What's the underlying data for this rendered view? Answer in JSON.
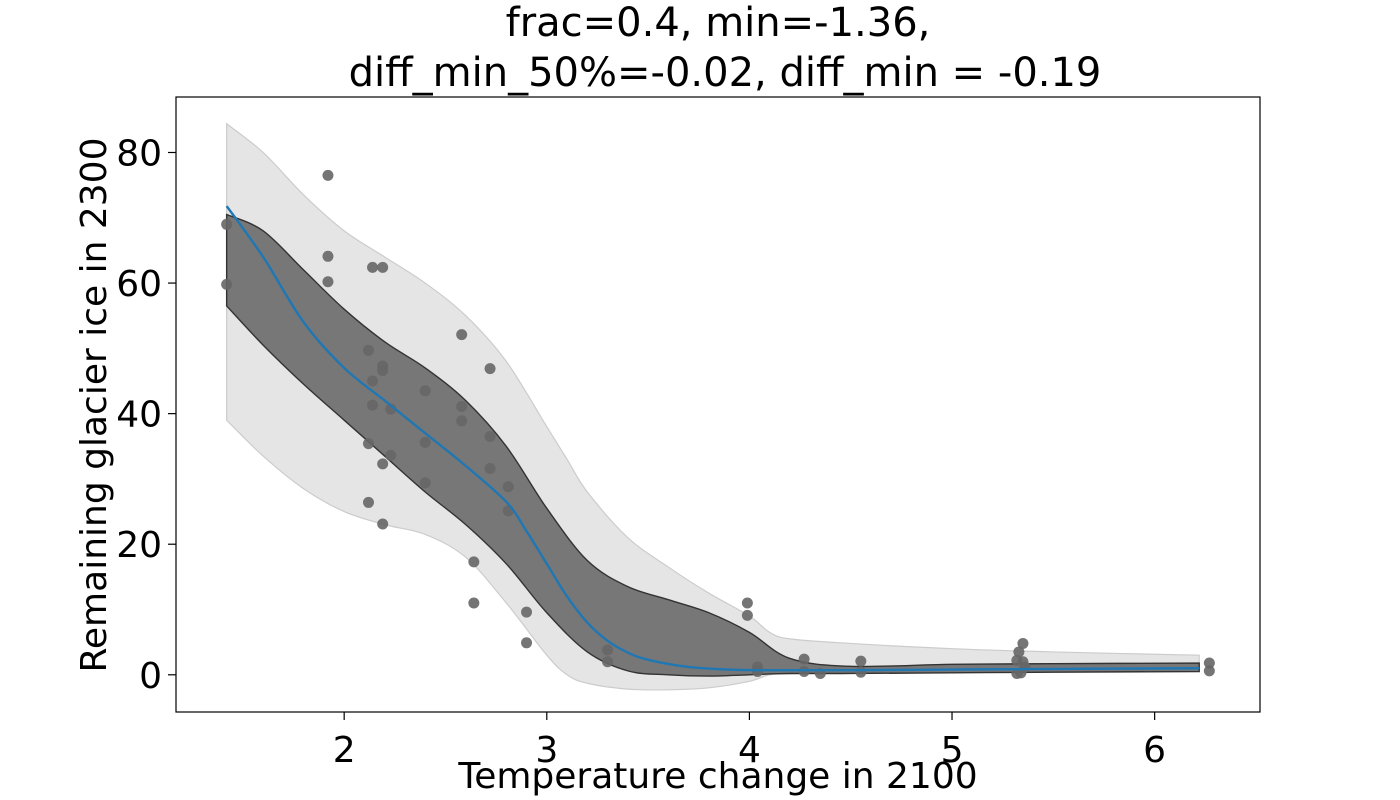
{
  "chart_data": {
    "type": "scatter",
    "title_lines": [
      "frac=0.4, min=-1.36,",
      "diff_min_50%=-0.02, diff_min = -0.19"
    ],
    "xlabel": "Temperature change in 2100",
    "ylabel": "Remaining glacier ice in 2300",
    "xlim": [
      1.17,
      6.52
    ],
    "ylim": [
      -5.7,
      88.5
    ],
    "xticks": [
      2,
      3,
      4,
      5,
      6
    ],
    "yticks": [
      0,
      20,
      40,
      60,
      80
    ],
    "grid": false,
    "colors": {
      "points": "#666666",
      "line": "#1f77b4",
      "outer_band": "#e5e5e5",
      "outer_band_edge": "#cccccc",
      "inner_band": "#777777",
      "inner_band_edge": "#333333"
    },
    "points": {
      "x": [
        1.42,
        1.42,
        1.92,
        1.92,
        1.92,
        2.12,
        2.12,
        2.12,
        2.14,
        2.14,
        2.14,
        2.19,
        2.19,
        2.19,
        2.19,
        2.19,
        2.23,
        2.23,
        2.4,
        2.4,
        2.4,
        2.58,
        2.58,
        2.58,
        2.64,
        2.64,
        2.72,
        2.72,
        2.72,
        2.81,
        2.81,
        2.9,
        2.9,
        3.3,
        3.3,
        3.99,
        3.99,
        4.04,
        4.04,
        4.27,
        4.27,
        4.35,
        4.55,
        4.55,
        5.32,
        5.32,
        5.33,
        5.34,
        5.35,
        5.35,
        5.36,
        6.27,
        6.27
      ],
      "y": [
        69.0,
        59.8,
        76.5,
        64.1,
        60.2,
        49.7,
        35.4,
        26.4,
        62.4,
        45.0,
        41.3,
        62.4,
        47.3,
        46.6,
        32.3,
        23.1,
        40.7,
        33.6,
        43.5,
        35.6,
        29.4,
        52.1,
        41.1,
        38.9,
        17.3,
        11.0,
        46.9,
        36.5,
        31.6,
        28.8,
        25.1,
        9.6,
        4.9,
        3.8,
        2.0,
        11.0,
        9.1,
        1.2,
        0.5,
        2.4,
        0.5,
        0.2,
        2.1,
        0.4,
        2.2,
        0.2,
        3.5,
        0.3,
        4.8,
        2.0,
        1.2,
        1.8,
        0.6
      ]
    },
    "median_line": {
      "x": [
        1.42,
        1.6,
        1.8,
        2.0,
        2.2,
        2.4,
        2.6,
        2.8,
        2.9,
        3.0,
        3.1,
        3.2,
        3.3,
        3.4,
        3.5,
        3.7,
        3.9,
        4.1,
        4.5,
        5.0,
        5.5,
        6.22
      ],
      "y": [
        71.8,
        64.0,
        54.0,
        47.0,
        42.0,
        37.0,
        32.0,
        26.5,
        22.0,
        17.0,
        12.0,
        8.0,
        5.2,
        3.4,
        2.3,
        1.2,
        0.8,
        0.7,
        0.7,
        0.8,
        0.9,
        1.0
      ]
    },
    "inner_band": {
      "x": [
        1.42,
        1.6,
        1.8,
        2.0,
        2.2,
        2.4,
        2.6,
        2.8,
        3.0,
        3.2,
        3.4,
        3.6,
        3.8,
        4.0,
        4.2,
        4.5,
        5.0,
        5.5,
        6.22
      ],
      "upper": [
        70.5,
        68.0,
        62.0,
        56.0,
        51.0,
        47.0,
        42.0,
        35.0,
        25.5,
        17.5,
        13.5,
        11.5,
        9.5,
        6.5,
        2.5,
        1.3,
        1.6,
        1.7,
        1.8
      ],
      "lower": [
        56.5,
        50.5,
        44.5,
        39.0,
        33.5,
        28.0,
        23.0,
        17.0,
        9.5,
        3.5,
        0.6,
        0.0,
        -0.2,
        0.0,
        0.2,
        0.2,
        0.3,
        0.4,
        0.5
      ]
    },
    "outer_band": {
      "x": [
        1.42,
        1.6,
        1.8,
        2.0,
        2.2,
        2.4,
        2.6,
        2.8,
        3.0,
        3.1,
        3.2,
        3.4,
        3.6,
        3.8,
        4.0,
        4.1,
        4.2,
        4.5,
        5.0,
        5.5,
        6.22
      ],
      "upper": [
        84.4,
        80.0,
        73.5,
        68.0,
        64.0,
        60.0,
        55.0,
        48.0,
        38.0,
        33.0,
        28.0,
        21.0,
        16.5,
        12.5,
        9.0,
        6.5,
        5.5,
        4.8,
        4.0,
        3.5,
        3.0
      ],
      "lower": [
        39.0,
        33.5,
        28.5,
        25.0,
        23.0,
        21.5,
        18.0,
        11.0,
        3.0,
        0.0,
        -1.3,
        -2.2,
        -2.3,
        -2.0,
        -1.0,
        0.0,
        0.1,
        0.2,
        0.4,
        0.5,
        0.6
      ]
    }
  }
}
